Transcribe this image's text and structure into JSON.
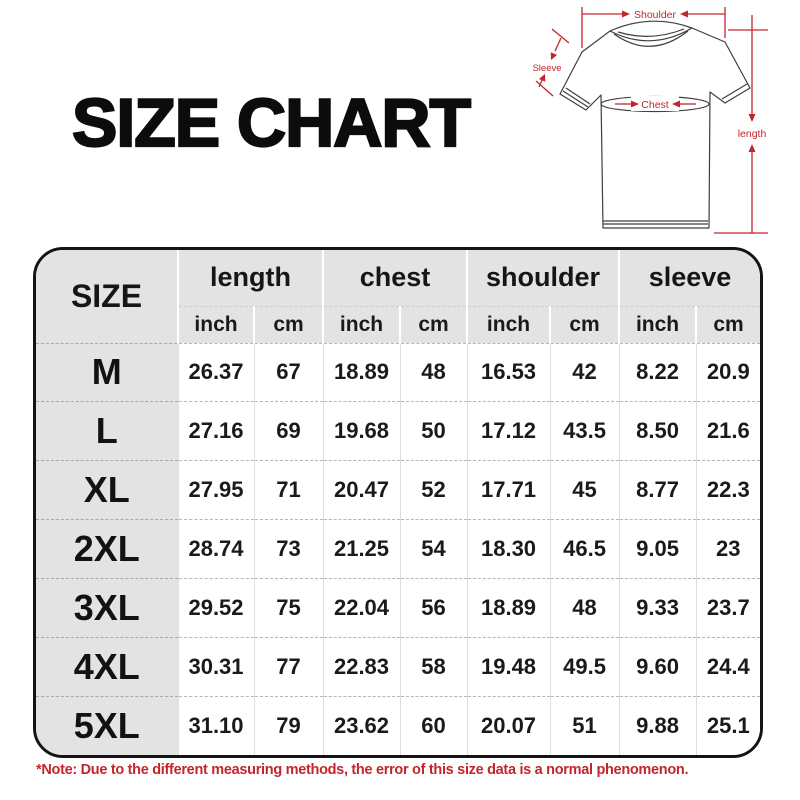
{
  "title": "SIZE CHART",
  "note": "*Note: Due to the different measuring methods, the error of this size data is a normal phenomenon.",
  "colors": {
    "accent_red": "#c2262c",
    "header_gray": "#e3e3e3",
    "outer_border": "#141414",
    "shirt_outline": "#3f3f3f"
  },
  "diagram": {
    "labels": {
      "shoulder": "Shoulder",
      "sleeve": "Sleeve",
      "chest": "Chest",
      "length": "length"
    }
  },
  "chart_data": {
    "type": "table",
    "size_header": "SIZE",
    "groups": [
      {
        "label": "length",
        "units": [
          "inch",
          "cm"
        ]
      },
      {
        "label": "chest",
        "units": [
          "inch",
          "cm"
        ]
      },
      {
        "label": "shoulder",
        "units": [
          "inch",
          "cm"
        ]
      },
      {
        "label": "sleeve",
        "units": [
          "inch",
          "cm"
        ]
      }
    ],
    "rows": [
      {
        "size": "M",
        "values": [
          "26.37",
          "67",
          "18.89",
          "48",
          "16.53",
          "42",
          "8.22",
          "20.9"
        ]
      },
      {
        "size": "L",
        "values": [
          "27.16",
          "69",
          "19.68",
          "50",
          "17.12",
          "43.5",
          "8.50",
          "21.6"
        ]
      },
      {
        "size": "XL",
        "values": [
          "27.95",
          "71",
          "20.47",
          "52",
          "17.71",
          "45",
          "8.77",
          "22.3"
        ]
      },
      {
        "size": "2XL",
        "values": [
          "28.74",
          "73",
          "21.25",
          "54",
          "18.30",
          "46.5",
          "9.05",
          "23"
        ]
      },
      {
        "size": "3XL",
        "values": [
          "29.52",
          "75",
          "22.04",
          "56",
          "18.89",
          "48",
          "9.33",
          "23.7"
        ]
      },
      {
        "size": "4XL",
        "values": [
          "30.31",
          "77",
          "22.83",
          "58",
          "19.48",
          "49.5",
          "9.60",
          "24.4"
        ]
      },
      {
        "size": "5XL",
        "values": [
          "31.10",
          "79",
          "23.62",
          "60",
          "20.07",
          "51",
          "9.88",
          "25.1"
        ]
      }
    ]
  }
}
